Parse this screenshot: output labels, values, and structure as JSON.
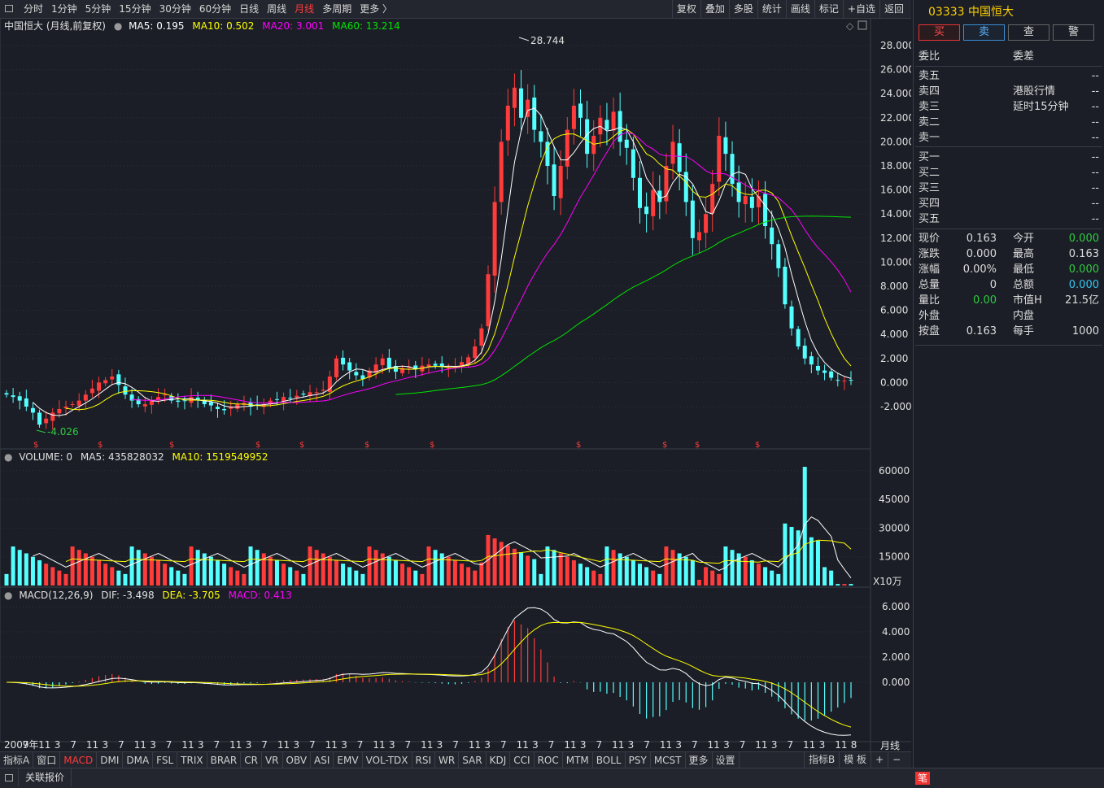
{
  "toolbar": {
    "periods": [
      "分时",
      "1分钟",
      "5分钟",
      "15分钟",
      "30分钟",
      "60分钟",
      "日线",
      "周线",
      "月线",
      "多周期",
      "更多 〉"
    ],
    "active_period": "月线",
    "tools": [
      "复权",
      "叠加",
      "多股",
      "统计",
      "画线",
      "标记",
      "+自选",
      "返回"
    ]
  },
  "main_chart": {
    "legend": {
      "name": "中国恒大 (月线,前复权)",
      "ma5": "MA5: 0.195",
      "ma10": "MA10: 0.502",
      "ma20": "MA20: 3.001",
      "ma60": "MA60: 13.214"
    },
    "high_label": "28.744",
    "low_label": "-4.026",
    "y_ticks": [
      "28.000",
      "26.000",
      "24.000",
      "22.000",
      "20.000",
      "18.000",
      "16.000",
      "14.000",
      "12.000",
      "10.000",
      "8.000",
      "6.000",
      "4.000",
      "2.000",
      "0.000",
      "-2.000"
    ]
  },
  "volume_chart": {
    "legend": {
      "name": "VOLUME: 0",
      "ma5": "MA5: 435828032",
      "ma10": "MA10: 1519549952"
    },
    "y_ticks": [
      "60000",
      "45000",
      "30000",
      "15000"
    ],
    "unit": "X10万"
  },
  "macd_chart": {
    "legend": {
      "name": "MACD(12,26,9)",
      "dif": "DIF: -3.498",
      "dea": "DEA: -3.705",
      "macd": "MACD: 0.413"
    },
    "y_ticks": [
      "6.000",
      "4.000",
      "2.000",
      "0.000"
    ]
  },
  "x_axis": {
    "labels": [
      "2009年",
      "7",
      "11",
      "3",
      "7",
      "11",
      "3",
      "7",
      "11",
      "3",
      "7",
      "11",
      "3",
      "7",
      "11",
      "3",
      "7",
      "11",
      "3",
      "7",
      "11",
      "3",
      "7",
      "11",
      "3",
      "7",
      "11",
      "3",
      "7",
      "11",
      "3",
      "7",
      "11",
      "3",
      "7",
      "11",
      "3",
      "7",
      "11",
      "3",
      "7",
      "11",
      "3",
      "7",
      "11",
      "3",
      "7",
      "11",
      "3",
      "7",
      "11",
      "3",
      "11",
      "8"
    ],
    "period_label": "月线"
  },
  "bottom_tabs": {
    "items": [
      "指标A",
      "窗口",
      "MACD",
      "DMI",
      "DMA",
      "FSL",
      "TRIX",
      "BRAR",
      "CR",
      "VR",
      "OBV",
      "ASI",
      "EMV",
      "VOL-TDX",
      "RSI",
      "WR",
      "SAR",
      "KDJ",
      "CCI",
      "ROC",
      "MTM",
      "BOLL",
      "PSY",
      "MCST",
      "更多",
      "设置"
    ],
    "active": "MACD",
    "right_items": [
      "指标B",
      "模 板",
      "+",
      "−"
    ]
  },
  "right_panel": {
    "title": "03333 中国恒大",
    "buttons": [
      "买",
      "卖",
      "查",
      "警"
    ],
    "header": [
      "委比",
      "委差"
    ],
    "asks": [
      {
        "label": "卖五",
        "value": "--"
      },
      {
        "label": "卖四",
        "value": "--",
        "note": "港股行情"
      },
      {
        "label": "卖三",
        "value": "--",
        "note": "延时15分钟"
      },
      {
        "label": "卖二",
        "value": "--"
      },
      {
        "label": "卖一",
        "value": "--"
      }
    ],
    "bids": [
      {
        "label": "买一",
        "value": "--"
      },
      {
        "label": "买二",
        "value": "--"
      },
      {
        "label": "买三",
        "value": "--"
      },
      {
        "label": "买四",
        "value": "--"
      },
      {
        "label": "买五",
        "value": "--"
      }
    ],
    "stats": [
      {
        "l": "现价",
        "lv": "0.163",
        "lc": "#ddd",
        "r": "今开",
        "rv": "0.000",
        "rc": "#2ecc40"
      },
      {
        "l": "涨跌",
        "lv": "0.000",
        "lc": "#ddd",
        "r": "最高",
        "rv": "0.163",
        "rc": "#ddd"
      },
      {
        "l": "涨幅",
        "lv": "0.00%",
        "lc": "#ddd",
        "r": "最低",
        "rv": "0.000",
        "rc": "#2ecc40"
      },
      {
        "l": "总量",
        "lv": "0",
        "lc": "#ddd",
        "r": "总额",
        "rv": "0.000",
        "rc": "#36c6f0"
      },
      {
        "l": "量比",
        "lv": "0.00",
        "lc": "#2ecc40",
        "r": "市值H",
        "rv": "21.5亿",
        "rc": "#ddd"
      },
      {
        "l": "外盘",
        "lv": "",
        "lc": "#ddd",
        "r": "内盘",
        "rv": "",
        "rc": "#ddd"
      },
      {
        "l": "按盘",
        "lv": "0.163",
        "lc": "#ddd",
        "r": "每手",
        "rv": "1000",
        "rc": "#ddd"
      }
    ]
  },
  "status_bar": {
    "label": "关联报价",
    "badge": "笔"
  },
  "colors": {
    "up": "#ff3b3b",
    "down": "#54ffff",
    "ma5": "#ffffff",
    "ma10": "#ffff00",
    "ma20": "#ff00ff",
    "ma60": "#00e600",
    "accent": "#ffd000"
  },
  "chart_data": {
    "type": "candlestick",
    "title": "中国恒大 (月线,前复权)",
    "x_start": "2009-10",
    "ylim": [
      -2.5,
      29
    ],
    "closes": [
      -1,
      -1.2,
      -1.5,
      -2,
      -2.5,
      -3.5,
      -3,
      -2.5,
      -2.2,
      -2,
      -1.8,
      -1.5,
      -1,
      -0.5,
      0,
      0.2,
      0.5,
      -0.2,
      -1,
      -1.5,
      -1.8,
      -1.8,
      -1.5,
      -1.2,
      -1,
      -1.5,
      -1.6,
      -1.5,
      -1.2,
      -1.5,
      -1.8,
      -1.9,
      -2.2,
      -2.3,
      -2,
      -1.8,
      -1.7,
      -2,
      -1.9,
      -1.8,
      -1.5,
      -1.4,
      -1.2,
      -1.3,
      -1.1,
      -1,
      -0.8,
      -0.8,
      -0.6,
      0.5,
      2,
      1.5,
      1,
      0.6,
      0.3,
      1,
      1.5,
      2,
      1.2,
      0.9,
      1.2,
      1.3,
      1.1,
      1.4,
      1.5,
      1.4,
      1.3,
      1.2,
      1.3,
      1.7,
      2.1,
      3,
      4.5,
      9,
      15,
      20,
      23,
      24.5,
      22,
      23.5,
      21,
      20,
      18,
      15.5,
      18,
      21,
      23,
      22,
      19,
      20.5,
      22,
      21,
      22.5,
      20,
      19.5,
      17,
      14.5,
      14,
      16,
      15,
      18,
      20,
      17.5,
      15,
      12,
      12.5,
      14,
      16.5,
      20.5,
      19,
      16.5,
      15,
      15.5,
      14.5,
      15.5,
      13,
      11.5,
      9.5,
      6.5,
      4.5,
      3,
      2,
      1.5,
      1,
      0.8,
      0.4,
      0.163,
      0.163,
      0.163
    ]
  }
}
